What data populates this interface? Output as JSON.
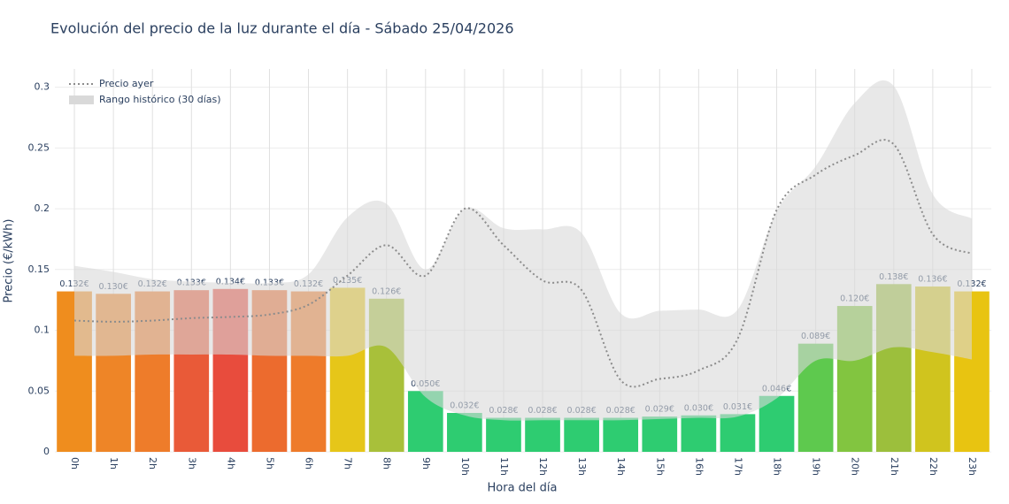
{
  "chart_data": {
    "type": "bar",
    "title": "Evolución del precio de la luz durante el día - Sábado 25/04/2026",
    "x_label": "Hora del día",
    "y_label": "Precio (€/kWh)",
    "categories": [
      "0h",
      "1h",
      "2h",
      "3h",
      "4h",
      "5h",
      "6h",
      "7h",
      "8h",
      "9h",
      "10h",
      "11h",
      "12h",
      "13h",
      "14h",
      "15h",
      "16h",
      "17h",
      "18h",
      "19h",
      "20h",
      "21h",
      "22h",
      "23h"
    ],
    "values": [
      0.132,
      0.13,
      0.132,
      0.133,
      0.134,
      0.133,
      0.132,
      0.135,
      0.126,
      0.05,
      0.032,
      0.028,
      0.028,
      0.028,
      0.028,
      0.029,
      0.03,
      0.031,
      0.046,
      0.089,
      0.12,
      0.138,
      0.136,
      0.132
    ],
    "value_labels": [
      "0.132€",
      "0.130€",
      "0.132€",
      "0.133€",
      "0.134€",
      "0.133€",
      "0.132€",
      "0.135€",
      "0.126€",
      "0.050€",
      "0.032€",
      "0.028€",
      "0.028€",
      "0.028€",
      "0.028€",
      "0.029€",
      "0.030€",
      "0.031€",
      "0.046€",
      "0.089€",
      "0.120€",
      "0.138€",
      "0.136€",
      "0.132€"
    ],
    "colors": [
      "#ef8d1e",
      "#ee8527",
      "#ee7c2a",
      "#e95a38",
      "#e84c3d",
      "#ec6b2e",
      "#ee7b2a",
      "#e6c619",
      "#a8c03a",
      "#2ecc71",
      "#2ecc71",
      "#2ecc71",
      "#2ecc71",
      "#2ecc71",
      "#2ecc71",
      "#2ecc71",
      "#2ecc71",
      "#2ecc71",
      "#2ecc71",
      "#5ec94e",
      "#82c540",
      "#9cbf3c",
      "#d0c41e",
      "#e8c411"
    ],
    "series": [
      {
        "name": "Precio ayer",
        "color": "#8c8c8c",
        "values": [
          0.108,
          0.107,
          0.108,
          0.11,
          0.111,
          0.113,
          0.121,
          0.145,
          0.17,
          0.145,
          0.2,
          0.17,
          0.141,
          0.133,
          0.059,
          0.06,
          0.067,
          0.093,
          0.199,
          0.228,
          0.244,
          0.253,
          0.179,
          0.163
        ]
      }
    ],
    "range": {
      "name": "Rango histórico (30 días)",
      "color": "#d9d9d9",
      "upper": [
        0.153,
        0.148,
        0.142,
        0.14,
        0.139,
        0.139,
        0.146,
        0.193,
        0.204,
        0.15,
        0.2,
        0.184,
        0.183,
        0.18,
        0.114,
        0.116,
        0.117,
        0.117,
        0.198,
        0.235,
        0.287,
        0.301,
        0.212,
        0.192
      ],
      "lower": [
        0.079,
        0.079,
        0.08,
        0.08,
        0.08,
        0.079,
        0.079,
        0.079,
        0.086,
        0.045,
        0.03,
        0.026,
        0.026,
        0.026,
        0.026,
        0.027,
        0.028,
        0.029,
        0.044,
        0.075,
        0.075,
        0.086,
        0.082,
        0.076
      ]
    },
    "ylim": [
      0,
      0.315
    ],
    "yticks": [
      0,
      0.05,
      0.1,
      0.15,
      0.2,
      0.25,
      0.3
    ],
    "grid": true,
    "legend": "top-left"
  }
}
